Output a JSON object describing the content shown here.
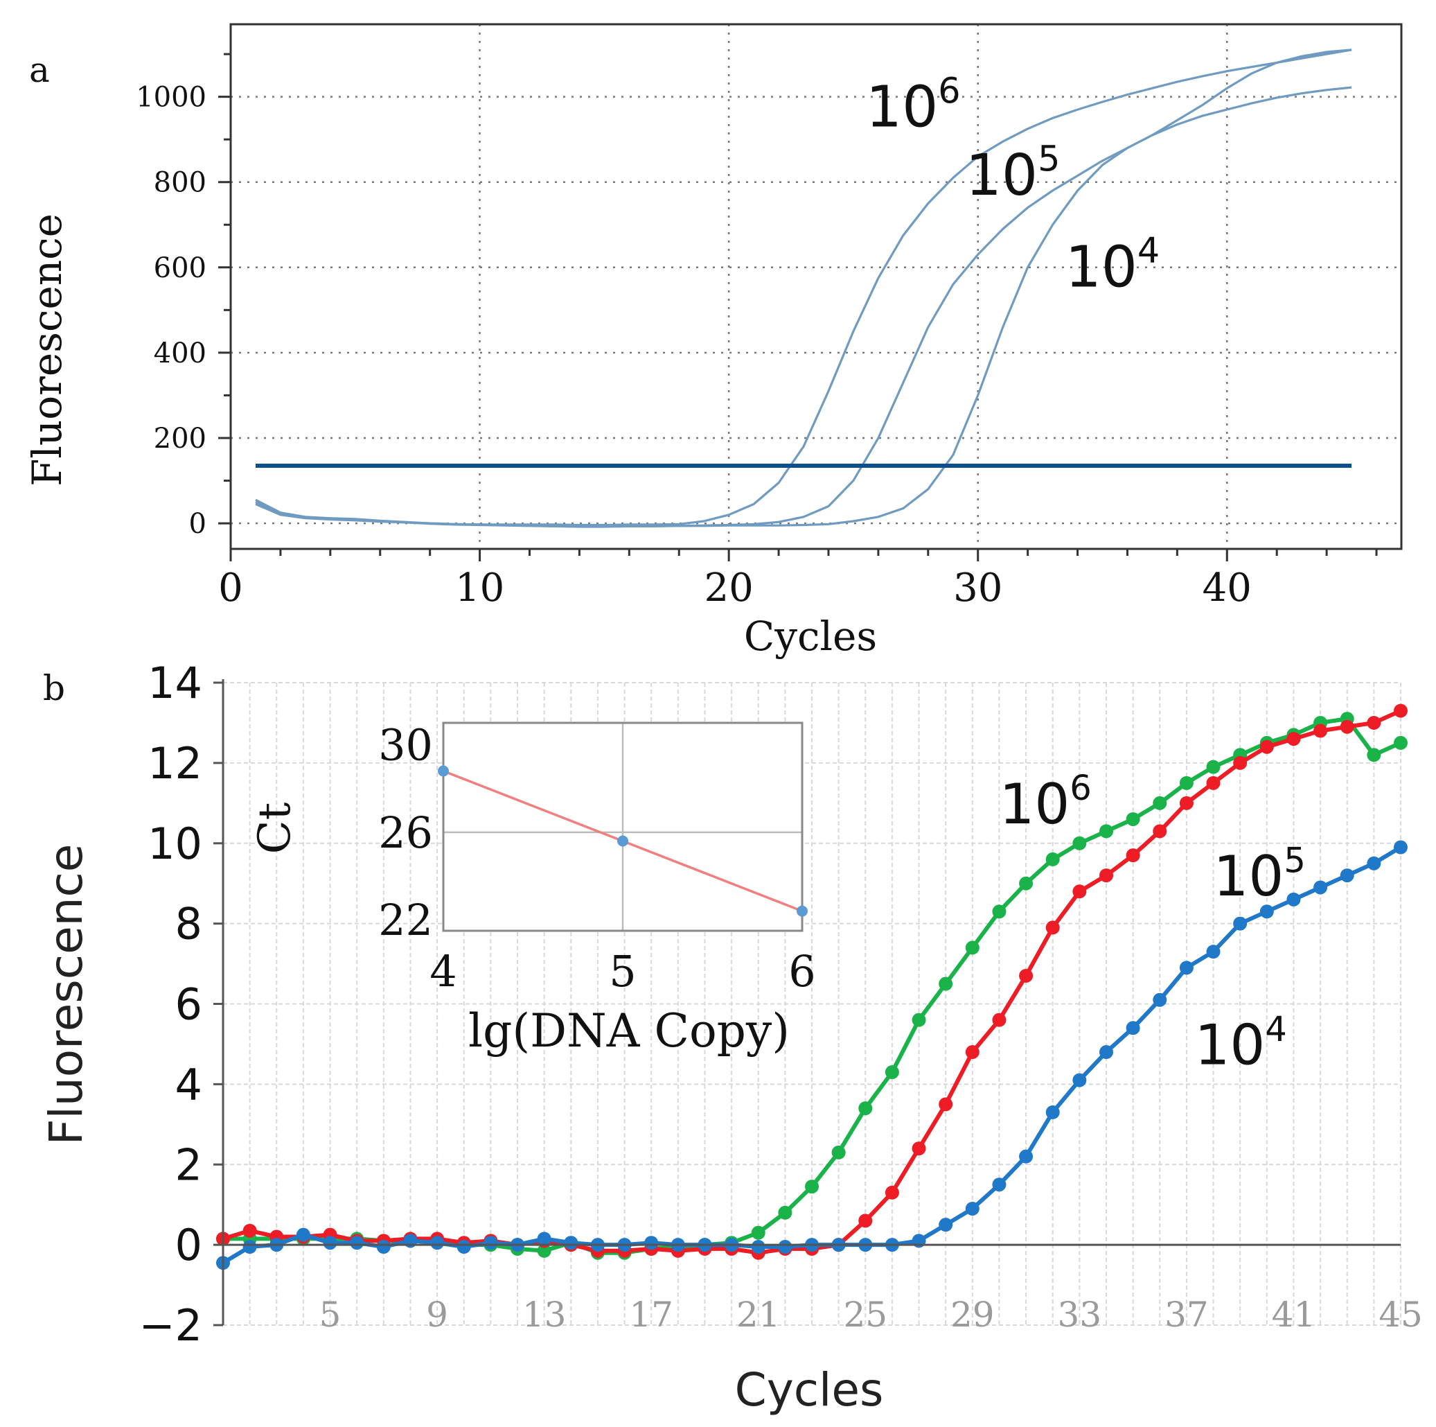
{
  "chart_data": [
    {
      "panel_label": "a",
      "type": "line",
      "xlabel": "Cycles",
      "ylabel": "Fluorescence",
      "xlim": [
        0,
        47
      ],
      "ylim": [
        -60,
        1170
      ],
      "xticks": [
        0,
        10,
        20,
        30,
        40
      ],
      "yticks": [
        0,
        200,
        400,
        600,
        800,
        1000
      ],
      "grid": true,
      "threshold": {
        "value": 135,
        "x_range": [
          1,
          45
        ]
      },
      "colors": {
        "curve": "#6f9bc0",
        "threshold": "#0d4f8b",
        "axis": "#333333"
      },
      "series": [
        {
          "name": "10^6",
          "label_base": "10",
          "label_exp": "6",
          "x": [
            1,
            2,
            3,
            4,
            5,
            6,
            7,
            8,
            9,
            10,
            11,
            12,
            13,
            14,
            15,
            16,
            17,
            18,
            19,
            20,
            21,
            22,
            23,
            24,
            25,
            26,
            27,
            28,
            29,
            30,
            31,
            32,
            33,
            34,
            35,
            36,
            37,
            38,
            39,
            40,
            41,
            42,
            43,
            44,
            45
          ],
          "y": [
            55,
            25,
            15,
            12,
            10,
            6,
            3,
            0,
            -2,
            -3,
            -3,
            -3,
            -3,
            -4,
            -4,
            -3,
            -3,
            -2,
            5,
            20,
            45,
            95,
            180,
            310,
            450,
            575,
            675,
            750,
            810,
            860,
            895,
            925,
            950,
            970,
            988,
            1005,
            1020,
            1035,
            1048,
            1060,
            1070,
            1080,
            1090,
            1100,
            1110
          ]
        },
        {
          "name": "10^5",
          "label_base": "10",
          "label_exp": "5",
          "x": [
            1,
            2,
            3,
            4,
            5,
            6,
            7,
            8,
            9,
            10,
            11,
            12,
            13,
            14,
            15,
            16,
            17,
            18,
            19,
            20,
            21,
            22,
            23,
            24,
            25,
            26,
            27,
            28,
            29,
            30,
            31,
            32,
            33,
            34,
            35,
            36,
            37,
            38,
            39,
            40,
            41,
            42,
            43,
            44,
            45
          ],
          "y": [
            50,
            22,
            13,
            10,
            8,
            5,
            2,
            0,
            -2,
            -3,
            -4,
            -5,
            -7,
            -7,
            -6,
            -6,
            -6,
            -6,
            -5,
            -4,
            -2,
            3,
            15,
            40,
            100,
            200,
            330,
            460,
            560,
            630,
            690,
            740,
            780,
            815,
            850,
            880,
            910,
            945,
            980,
            1020,
            1055,
            1080,
            1095,
            1105,
            1110
          ]
        },
        {
          "name": "10^4",
          "label_base": "10",
          "label_exp": "4",
          "x": [
            1,
            2,
            3,
            4,
            5,
            6,
            7,
            8,
            9,
            10,
            11,
            12,
            13,
            14,
            15,
            16,
            17,
            18,
            19,
            20,
            21,
            22,
            23,
            24,
            25,
            26,
            27,
            28,
            29,
            30,
            31,
            32,
            33,
            34,
            35,
            36,
            37,
            38,
            39,
            40,
            41,
            42,
            43,
            44,
            45
          ],
          "y": [
            45,
            20,
            12,
            9,
            7,
            4,
            2,
            -1,
            -3,
            -4,
            -5,
            -6,
            -7,
            -8,
            -8,
            -7,
            -7,
            -6,
            -6,
            -5,
            -5,
            -5,
            -4,
            -2,
            5,
            15,
            35,
            80,
            160,
            300,
            460,
            600,
            700,
            780,
            840,
            880,
            910,
            935,
            955,
            970,
            985,
            998,
            1008,
            1016,
            1022
          ]
        }
      ],
      "annotations": [
        {
          "series": "10^6",
          "x": 25.5,
          "y": 930
        },
        {
          "series": "10^5",
          "x": 29.5,
          "y": 770
        },
        {
          "series": "10^4",
          "x": 33.5,
          "y": 555
        }
      ]
    },
    {
      "panel_label": "b",
      "type": "line",
      "xlabel": "Cycles",
      "ylabel": "Fluorescence",
      "xlim": [
        1,
        45
      ],
      "ylim": [
        -2,
        14
      ],
      "xticks": [
        5,
        9,
        13,
        17,
        21,
        25,
        29,
        33,
        37,
        41,
        45
      ],
      "yticks": [
        -2,
        0,
        2,
        4,
        6,
        8,
        10,
        12,
        14
      ],
      "ytick_labels": [
        "−2",
        "0",
        "2",
        "4",
        "6",
        "8",
        "10",
        "12",
        "14"
      ],
      "grid": true,
      "colors": {
        "green": "#19b34a",
        "red": "#ee1c24",
        "blue": "#1f78c8",
        "grid": "#d8d8d8"
      },
      "series": [
        {
          "name": "10^6",
          "color": "green",
          "x": [
            1,
            2,
            3,
            4,
            5,
            6,
            7,
            8,
            9,
            10,
            11,
            12,
            13,
            14,
            15,
            16,
            17,
            18,
            19,
            20,
            21,
            22,
            23,
            24,
            25,
            26,
            27,
            28,
            29,
            30,
            31,
            32,
            33,
            34,
            35,
            36,
            37,
            38,
            39,
            40,
            41,
            42,
            43,
            44,
            45
          ],
          "y": [
            0.15,
            0.15,
            0.15,
            0.15,
            0.15,
            0.15,
            0.1,
            0.1,
            0.1,
            0,
            0,
            -0.1,
            -0.15,
            0.05,
            -0.2,
            -0.2,
            -0.1,
            -0.05,
            0,
            0.05,
            0.3,
            0.8,
            1.45,
            2.3,
            3.4,
            4.3,
            5.6,
            6.5,
            7.4,
            8.3,
            9.0,
            9.6,
            10.0,
            10.3,
            10.6,
            11.0,
            11.5,
            11.9,
            12.2,
            12.5,
            12.7,
            13.0,
            13.1,
            12.2,
            12.5
          ]
        },
        {
          "name": "10^5",
          "color": "red",
          "x": [
            1,
            2,
            3,
            4,
            5,
            6,
            7,
            8,
            9,
            10,
            11,
            12,
            13,
            14,
            15,
            16,
            17,
            18,
            19,
            20,
            21,
            22,
            23,
            24,
            25,
            26,
            27,
            28,
            29,
            30,
            31,
            32,
            33,
            34,
            35,
            36,
            37,
            38,
            39,
            40,
            41,
            42,
            43,
            44,
            45
          ],
          "y": [
            0.15,
            0.35,
            0.2,
            0.2,
            0.25,
            0.1,
            0.1,
            0.15,
            0.15,
            0.05,
            0.1,
            0,
            0.1,
            0,
            -0.15,
            -0.15,
            -0.1,
            -0.15,
            -0.1,
            -0.1,
            -0.2,
            -0.1,
            -0.1,
            0,
            0.6,
            1.3,
            2.4,
            3.5,
            4.8,
            5.6,
            6.7,
            7.9,
            8.8,
            9.2,
            9.7,
            10.3,
            11.0,
            11.5,
            12.0,
            12.4,
            12.6,
            12.8,
            12.9,
            13.0,
            13.3
          ]
        },
        {
          "name": "10^4",
          "color": "blue",
          "x": [
            1,
            2,
            3,
            4,
            5,
            6,
            7,
            8,
            9,
            10,
            11,
            12,
            13,
            14,
            15,
            16,
            17,
            18,
            19,
            20,
            21,
            22,
            23,
            24,
            25,
            26,
            27,
            28,
            29,
            30,
            31,
            32,
            33,
            34,
            35,
            36,
            37,
            38,
            39,
            40,
            41,
            42,
            43,
            44,
            45
          ],
          "y": [
            -0.45,
            -0.05,
            0,
            0.25,
            0.05,
            0.05,
            -0.05,
            0.1,
            0.05,
            -0.05,
            0.05,
            0,
            0.15,
            0.05,
            0,
            0,
            0.05,
            0,
            0,
            0,
            -0.05,
            -0.05,
            0,
            0,
            0,
            0,
            0.1,
            0.5,
            0.9,
            1.5,
            2.2,
            3.3,
            4.1,
            4.8,
            5.4,
            6.1,
            6.9,
            7.3,
            8.0,
            8.3,
            8.6,
            8.9,
            9.2,
            9.5,
            9.9
          ]
        }
      ],
      "annotations": [
        {
          "series": "10^6",
          "label_base": "10",
          "label_exp": "6",
          "x": 30,
          "y": 10.5
        },
        {
          "series": "10^5",
          "label_base": "10",
          "label_exp": "5",
          "x": 38,
          "y": 8.7
        },
        {
          "series": "10^4",
          "label_base": "10",
          "label_exp": "4",
          "x": 37.3,
          "y": 4.5
        }
      ],
      "inset": {
        "type": "scatter",
        "xlabel": "lg(DNA Copy)",
        "ylabel": "Ct",
        "xlim": [
          4,
          6
        ],
        "ylim": [
          21.5,
          31
        ],
        "xticks": [
          4,
          5,
          6
        ],
        "yticks": [
          22,
          26,
          30
        ],
        "points": [
          {
            "x": 4,
            "y": 28.8
          },
          {
            "x": 5,
            "y": 25.6
          },
          {
            "x": 6,
            "y": 22.4
          }
        ],
        "fit": {
          "x": [
            4,
            6
          ],
          "y": [
            28.8,
            22.4
          ]
        },
        "colors": {
          "point": "#5b9bd5",
          "fit": "#f08080",
          "frame": "#888888",
          "grid": "#bbbbbb"
        }
      }
    }
  ]
}
